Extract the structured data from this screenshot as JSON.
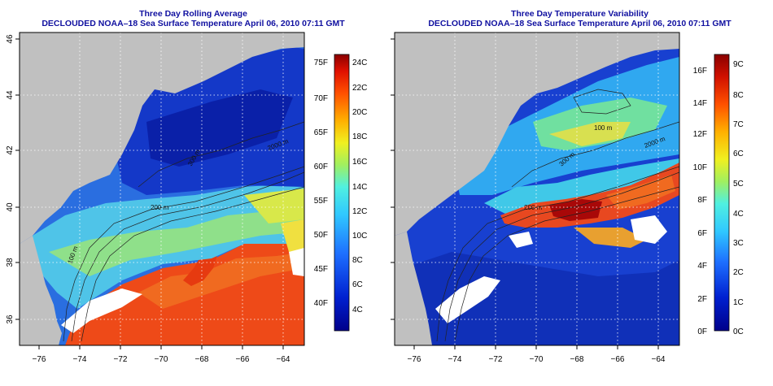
{
  "panels": [
    {
      "title": "Three Day Rolling Average",
      "subtitle": "DECLOUDED NOAA–18 Sea Surface Temperature April 06, 2010 07:11 GMT",
      "contours": [
        "200 m",
        "100 m",
        "300 m",
        "2000 m"
      ],
      "colorbar": {
        "left_labels": [
          "75F",
          "70F",
          "65F",
          "60F",
          "55F",
          "50F",
          "45F",
          "40F"
        ],
        "right_labels": [
          "24C",
          "22C",
          "20C",
          "18C",
          "16C",
          "14C",
          "12C",
          "10C",
          "8C",
          "6C",
          "4C"
        ]
      }
    },
    {
      "title": "Three Day Temperature Variability",
      "subtitle": "DECLOUDED NOAA–18 Sea Surface Temperature April 06, 2010 07:11 GMT",
      "contours": [
        "200 m",
        "100 m",
        "300 m",
        "2000 m"
      ],
      "colorbar": {
        "left_labels": [
          "16F",
          "14F",
          "12F",
          "10F",
          "8F",
          "6F",
          "4F",
          "2F",
          "0F"
        ],
        "right_labels": [
          "9C",
          "8C",
          "7C",
          "6C",
          "5C",
          "4C",
          "3C",
          "2C",
          "1C",
          "0C"
        ]
      }
    }
  ],
  "axes": {
    "x_ticks": [
      "−76",
      "−74",
      "−72",
      "−70",
      "−68",
      "−66",
      "−64"
    ],
    "y_ticks": [
      "46",
      "44",
      "42",
      "40",
      "38",
      "36"
    ]
  },
  "colors": {
    "land": "#c0c0c0",
    "title": "#1010a0",
    "no_data": "#ffffff"
  }
}
